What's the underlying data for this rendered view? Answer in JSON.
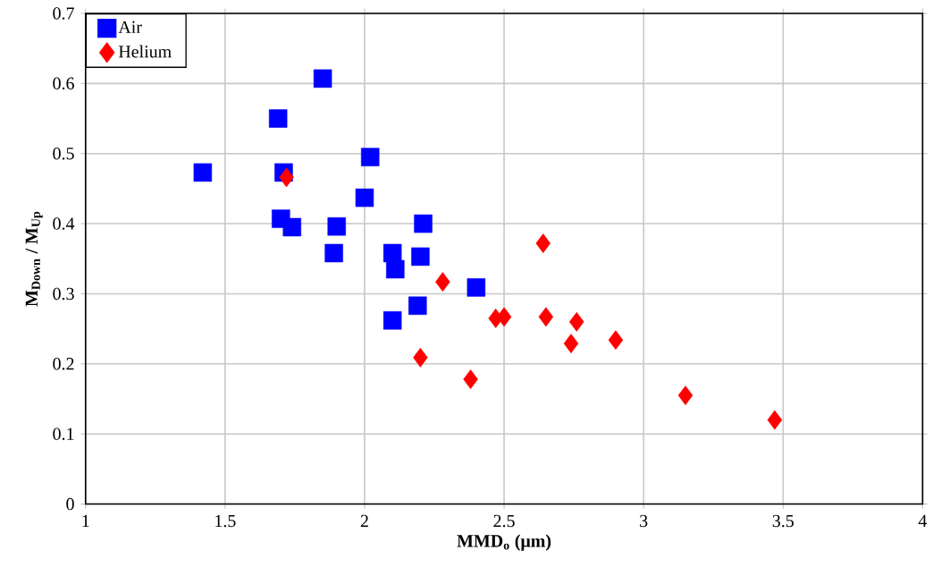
{
  "chart_data": {
    "type": "scatter",
    "xlabel": "**MMD$_{o}$ (μm)**",
    "ylabel": "**M$_{Down}$ / M$_{Up}$**",
    "xlim": [
      1,
      4
    ],
    "ylim": [
      0,
      0.7
    ],
    "xticks": [
      1,
      1.5,
      2,
      2.5,
      3,
      3.5,
      4
    ],
    "yticks": [
      0,
      0.1,
      0.2,
      0.3,
      0.4,
      0.5,
      0.6,
      0.7
    ],
    "grid": true,
    "legend": "top left",
    "series": [
      {
        "name": "Air",
        "color": "#0000ff",
        "marker": "square",
        "x": [
          1.42,
          1.69,
          1.85,
          1.71,
          1.7,
          1.74,
          2.02,
          2.0,
          1.9,
          1.89,
          2.21,
          2.1,
          2.11,
          2.2,
          2.4,
          2.19,
          2.1
        ],
        "values": [
          0.473,
          0.55,
          0.607,
          0.473,
          0.407,
          0.395,
          0.495,
          0.437,
          0.396,
          0.358,
          0.4,
          0.358,
          0.335,
          0.353,
          0.309,
          0.283,
          0.262
        ]
      },
      {
        "name": "Helium",
        "color": "#ff0000",
        "marker": "diamond",
        "x": [
          1.72,
          2.64,
          2.28,
          2.2,
          2.47,
          2.5,
          2.65,
          2.76,
          2.74,
          2.9,
          2.38,
          3.15,
          3.47
        ],
        "values": [
          0.466,
          0.372,
          0.317,
          0.209,
          0.265,
          0.267,
          0.267,
          0.26,
          0.229,
          0.234,
          0.178,
          0.155,
          0.12
        ]
      }
    ]
  }
}
